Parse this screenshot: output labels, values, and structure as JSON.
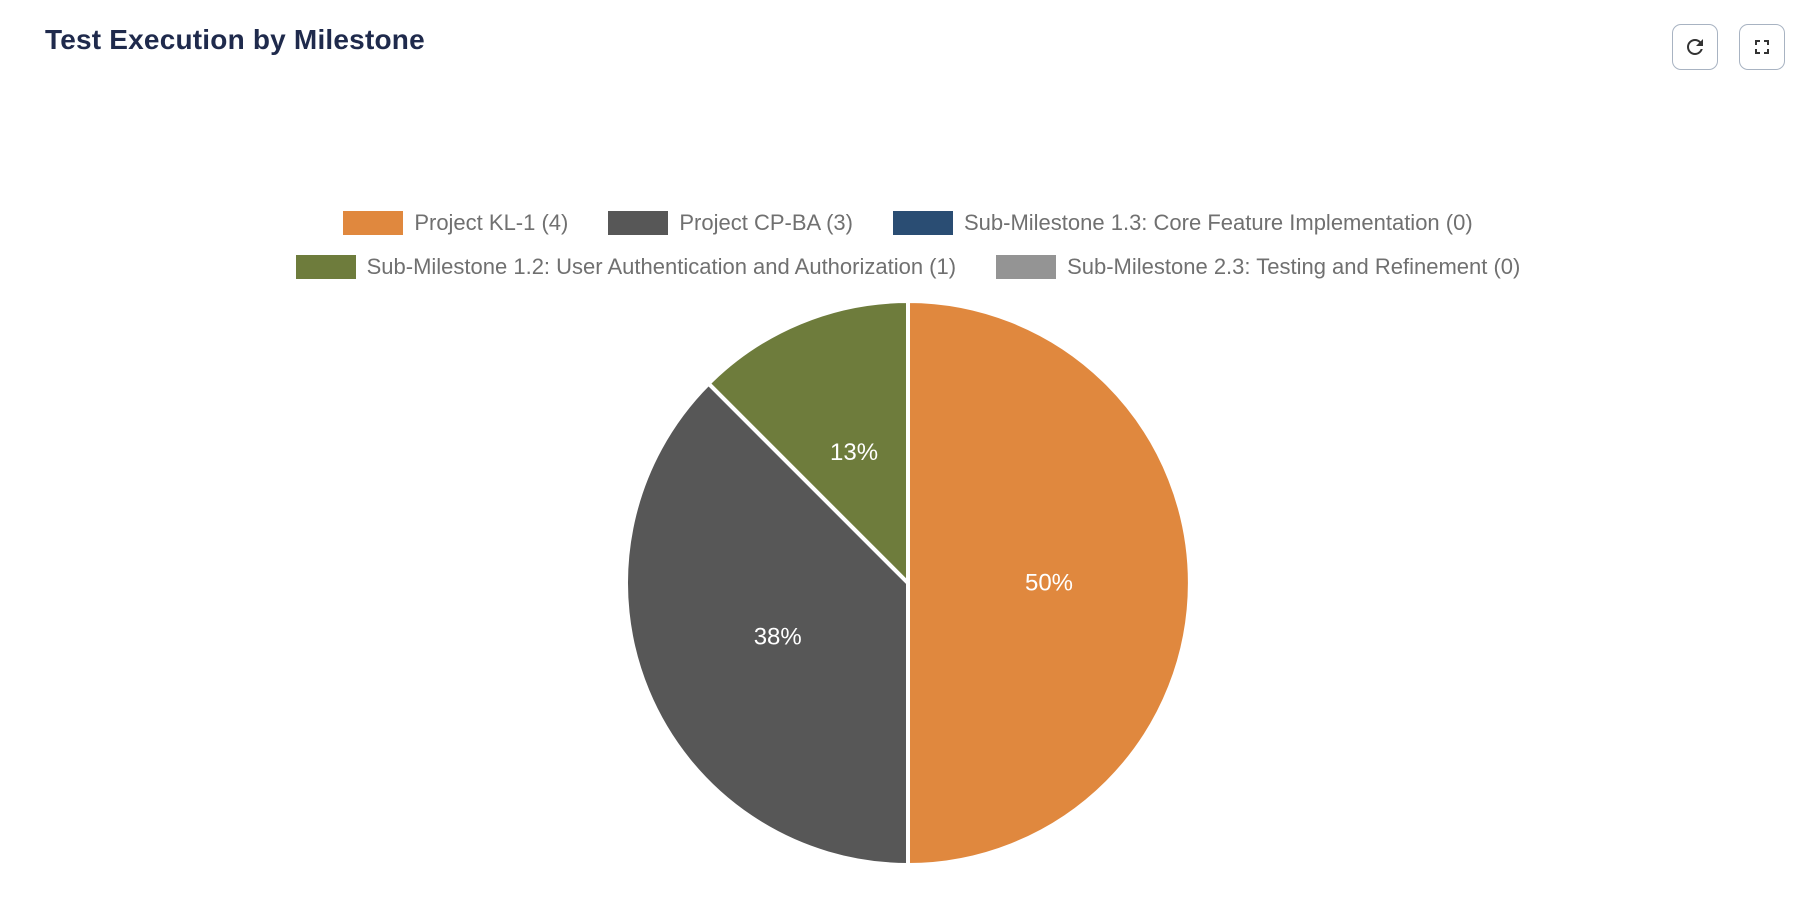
{
  "header": {
    "title": "Test Execution by Milestone"
  },
  "colors": {
    "title_text": "#1f2a4c",
    "legend_text": "#707070",
    "button_border": "#a8b3c2",
    "icon": "#333333",
    "slice_label_text": "#ffffff",
    "slice_border": "#ffffff"
  },
  "chart_data": {
    "type": "pie",
    "title": "Test Execution by Milestone",
    "legend_position": "top",
    "total": 8,
    "slices": [
      {
        "label": "Project KL-1 (4)",
        "value": 4,
        "percent_label": "50%",
        "color": "#e0883e"
      },
      {
        "label": "Project CP-BA (3)",
        "value": 3,
        "percent_label": "38%",
        "color": "#575757"
      },
      {
        "label": "Sub-Milestone 1.3: Core Feature Implementation (0)",
        "value": 0,
        "percent_label": "",
        "color": "#2a4d73"
      },
      {
        "label": "Sub-Milestone 1.2: User Authentication and Authorization (1)",
        "value": 1,
        "percent_label": "13%",
        "color": "#6e7c3c"
      },
      {
        "label": "Sub-Milestone 2.3: Testing and Refinement (0)",
        "value": 0,
        "percent_label": "",
        "color": "#949494"
      }
    ],
    "legend_rows": [
      [
        0,
        1,
        2
      ],
      [
        3,
        4
      ]
    ]
  }
}
